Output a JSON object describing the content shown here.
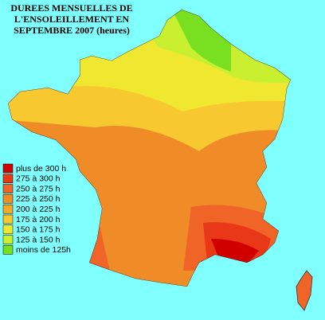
{
  "title": [
    "DUREES MENSUELLES DE",
    "L'ENSOLEILLEMENT EN",
    "SEPTEMBRE 2007 (heures)"
  ],
  "legend": [
    {
      "label": "plus de 300 h",
      "color": "#d00000"
    },
    {
      "label": "275 à 300 h",
      "color": "#e83818"
    },
    {
      "label": "250 à 275 h",
      "color": "#f06428"
    },
    {
      "label": "225 à 250 h",
      "color": "#f08c28"
    },
    {
      "label": "200 à 225 h",
      "color": "#f8a828"
    },
    {
      "label": "175 à 200 h",
      "color": "#f8c830"
    },
    {
      "label": "150 à 175 h",
      "color": "#f0e830"
    },
    {
      "label": "125 à 150 h",
      "color": "#c8f030"
    },
    {
      "label": "moins de 125h",
      "color": "#78e020"
    }
  ]
}
